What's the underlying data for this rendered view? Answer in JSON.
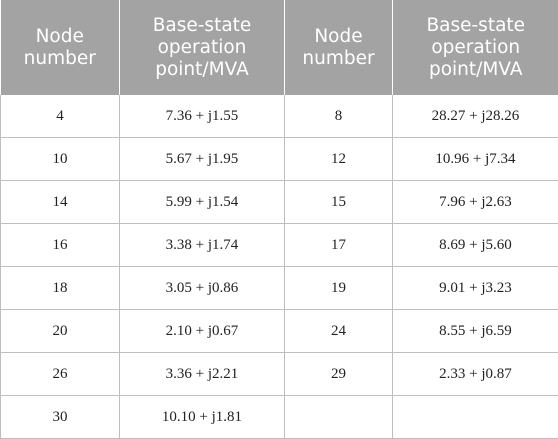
{
  "headers": {
    "node_line1": "Node",
    "node_line2": "number",
    "base_line1": "Base-state",
    "base_line2": "operation",
    "base_line3": "point/MVA"
  },
  "rows": [
    {
      "node_a": "4",
      "value_a": "7.36 + j1.55",
      "node_b": "8",
      "value_b": "28.27 + j28.26"
    },
    {
      "node_a": "10",
      "value_a": "5.67 + j1.95",
      "node_b": "12",
      "value_b": "10.96 + j7.34"
    },
    {
      "node_a": "14",
      "value_a": "5.99 + j1.54",
      "node_b": "15",
      "value_b": "7.96 + j2.63"
    },
    {
      "node_a": "16",
      "value_a": "3.38 + j1.74",
      "node_b": "17",
      "value_b": "8.69 + j5.60"
    },
    {
      "node_a": "18",
      "value_a": "3.05 + j0.86",
      "node_b": "19",
      "value_b": "9.01 + j3.23"
    },
    {
      "node_a": "20",
      "value_a": "2.10 + j0.67",
      "node_b": "24",
      "value_b": "8.55 + j6.59"
    },
    {
      "node_a": "26",
      "value_a": "3.36 + j2.21",
      "node_b": "29",
      "value_b": "2.33 + j0.87"
    },
    {
      "node_a": "30",
      "value_a": "10.10 + j1.81",
      "node_b": "",
      "value_b": ""
    }
  ]
}
